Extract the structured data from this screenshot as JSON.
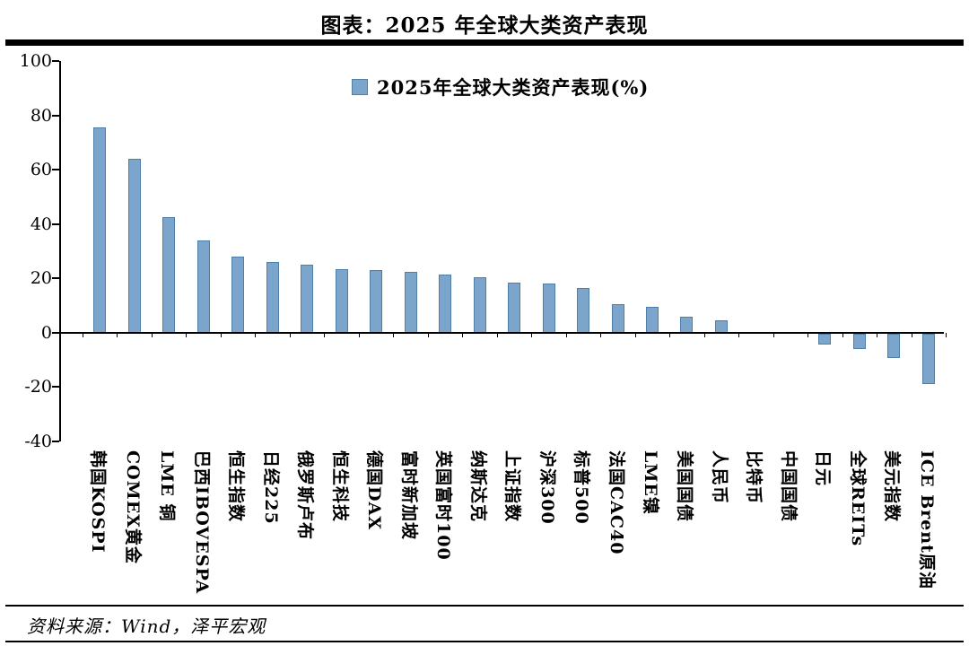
{
  "page": {
    "title": "图表：2025 年全球大类资产表现",
    "source": "资料来源：Wind，泽平宏观"
  },
  "colors": {
    "bar_fill": "#7BA5CB",
    "bar_border": "#4E7FA8",
    "axis": "#000000",
    "background": "#FFFFFF"
  },
  "chart_data": {
    "type": "bar",
    "title": "2025年全球大类资产表现(%)",
    "legend": "2025年全球大类资产表现(%)",
    "legend_position": "top-center",
    "grid": false,
    "xlabel": "",
    "ylabel": "",
    "ylim": [
      -40,
      100
    ],
    "yticks": [
      100,
      80,
      60,
      40,
      20,
      0,
      -20,
      -40
    ],
    "categories": [
      "韩国KOSPI",
      "COMEX黄金",
      "LME 铜",
      "巴西IBOVESPA",
      "恒生指数",
      "日经225",
      "俄罗斯卢布",
      "恒生科技",
      "德国DAX",
      "富时新加坡",
      "英国富时100",
      "纳斯达克",
      "上证指数",
      "沪深300",
      "标普500",
      "法国CAC40",
      "LME镍",
      "美国国债",
      "人民币",
      "比特币",
      "中国国债",
      "日元",
      "全球REITs",
      "美元指数",
      "ICE Brent原油"
    ],
    "values": [
      75.5,
      64,
      42.5,
      34,
      28,
      26,
      25,
      23.5,
      23,
      22.5,
      21.5,
      20.5,
      18.5,
      18,
      16.5,
      10.5,
      9.5,
      6,
      4.5,
      0.3,
      0.2,
      -4,
      -5.5,
      -9,
      -18.5
    ]
  }
}
